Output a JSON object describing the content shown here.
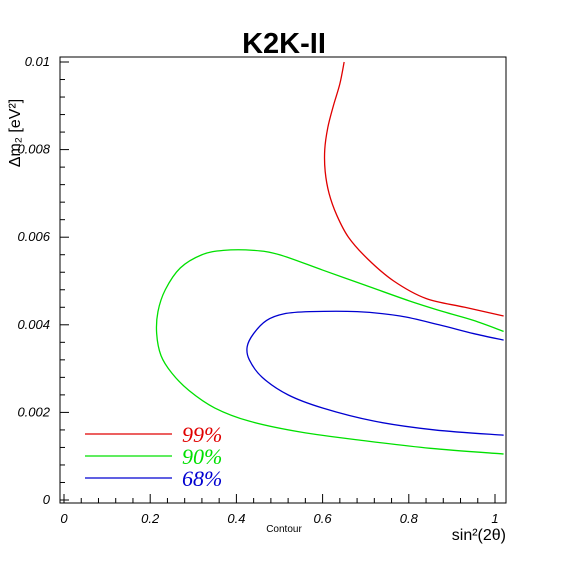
{
  "chart_data": {
    "type": "line",
    "title": "K2K-II",
    "xlabel": "sin²(2θ)",
    "ylabel": "Δm₂ [eV²]",
    "xlabel_sub": "Contour",
    "xlim": [
      0,
      1.02
    ],
    "ylim": [
      0,
      0.0101
    ],
    "grid": false,
    "legend_position": "bottom-left",
    "x_ticks": [
      {
        "value": 0,
        "label": "0"
      },
      {
        "value": 0.2,
        "label": "0.2"
      },
      {
        "value": 0.4,
        "label": "0.4"
      },
      {
        "value": 0.6,
        "label": "0.6"
      },
      {
        "value": 0.8,
        "label": "0.8"
      },
      {
        "value": 1.0,
        "label": "1"
      }
    ],
    "y_ticks": [
      {
        "value": 0,
        "label": "0"
      },
      {
        "value": 0.002,
        "label": "0.002"
      },
      {
        "value": 0.004,
        "label": "0.004"
      },
      {
        "value": 0.006,
        "label": "0.006"
      },
      {
        "value": 0.008,
        "label": "0.008"
      },
      {
        "value": 0.01,
        "label": "0.01"
      }
    ],
    "series": [
      {
        "name": "99%",
        "color": "#e00000",
        "points": [
          [
            0.65,
            0.01
          ],
          [
            0.64,
            0.0095
          ],
          [
            0.625,
            0.009
          ],
          [
            0.612,
            0.0085
          ],
          [
            0.605,
            0.008
          ],
          [
            0.606,
            0.0075
          ],
          [
            0.615,
            0.007
          ],
          [
            0.633,
            0.0065
          ],
          [
            0.66,
            0.006
          ],
          [
            0.705,
            0.0055
          ],
          [
            0.765,
            0.005
          ],
          [
            0.84,
            0.0046
          ],
          [
            0.93,
            0.0044
          ],
          [
            1.02,
            0.0042
          ]
        ]
      },
      {
        "name": "90%",
        "color": "#00e000",
        "points": [
          [
            1.02,
            0.00385
          ],
          [
            0.95,
            0.0041
          ],
          [
            0.88,
            0.0043
          ],
          [
            0.8,
            0.00455
          ],
          [
            0.7,
            0.0049
          ],
          [
            0.6,
            0.00525
          ],
          [
            0.5,
            0.0056
          ],
          [
            0.44,
            0.0057
          ],
          [
            0.37,
            0.0057
          ],
          [
            0.32,
            0.0056
          ],
          [
            0.27,
            0.0053
          ],
          [
            0.235,
            0.0048
          ],
          [
            0.218,
            0.0043
          ],
          [
            0.215,
            0.0038
          ],
          [
            0.225,
            0.0033
          ],
          [
            0.25,
            0.0029
          ],
          [
            0.29,
            0.0025
          ],
          [
            0.35,
            0.0021
          ],
          [
            0.43,
            0.0018
          ],
          [
            0.55,
            0.00155
          ],
          [
            0.7,
            0.00135
          ],
          [
            0.85,
            0.00118
          ],
          [
            1.02,
            0.00105
          ]
        ]
      },
      {
        "name": "68%",
        "color": "#0000d0",
        "points": [
          [
            1.02,
            0.00365
          ],
          [
            0.95,
            0.0038
          ],
          [
            0.87,
            0.004
          ],
          [
            0.78,
            0.0042
          ],
          [
            0.68,
            0.0043
          ],
          [
            0.57,
            0.0043
          ],
          [
            0.51,
            0.00425
          ],
          [
            0.47,
            0.0041
          ],
          [
            0.44,
            0.0038
          ],
          [
            0.425,
            0.0035
          ],
          [
            0.43,
            0.0032
          ],
          [
            0.46,
            0.0028
          ],
          [
            0.52,
            0.0024
          ],
          [
            0.6,
            0.0021
          ],
          [
            0.72,
            0.0018
          ],
          [
            0.86,
            0.0016
          ],
          [
            1.02,
            0.00148
          ]
        ]
      }
    ]
  }
}
